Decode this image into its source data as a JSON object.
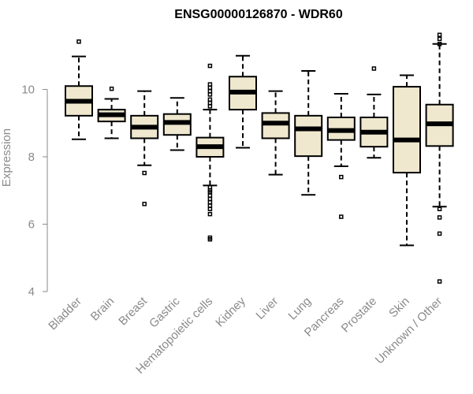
{
  "chart_data": {
    "type": "boxplot",
    "title": "ENSG00000126870 - WDR60",
    "xlabel": "",
    "ylabel": "Expression",
    "ylim": [
      4,
      11.7
    ],
    "yticks": [
      4,
      6,
      8,
      10
    ],
    "box_fill": "#efe8cf",
    "categories": [
      "Bladder",
      "Brain",
      "Breast",
      "Gastric",
      "Hematopoietic cells",
      "Kidney",
      "Liver",
      "Lung",
      "Pancreas",
      "Prostate",
      "Skin",
      "Unknown / Other"
    ],
    "boxes": [
      {
        "category": "Bladder",
        "whisker_low": 8.52,
        "q1": 9.22,
        "median": 9.65,
        "q3": 10.1,
        "whisker_high": 10.98,
        "outliers": [
          11.42
        ]
      },
      {
        "category": "Brain",
        "whisker_low": 8.55,
        "q1": 9.05,
        "median": 9.25,
        "q3": 9.4,
        "whisker_high": 9.72,
        "outliers": [
          10.02
        ]
      },
      {
        "category": "Breast",
        "whisker_low": 7.75,
        "q1": 8.55,
        "median": 8.88,
        "q3": 9.22,
        "whisker_high": 9.95,
        "outliers": [
          7.52,
          6.6
        ]
      },
      {
        "category": "Gastric",
        "whisker_low": 8.2,
        "q1": 8.65,
        "median": 9.02,
        "q3": 9.27,
        "whisker_high": 9.75,
        "outliers": []
      },
      {
        "category": "Hematopoietic cells",
        "whisker_low": 7.15,
        "q1": 8.0,
        "median": 8.3,
        "q3": 8.57,
        "whisker_high": 9.4,
        "outliers": [
          10.7,
          10.15,
          10.05,
          9.95,
          9.85,
          9.7,
          9.6,
          9.5,
          7.1,
          7.0,
          6.95,
          6.85,
          6.75,
          6.65,
          6.55,
          6.45,
          6.3,
          5.6,
          5.55
        ]
      },
      {
        "category": "Kidney",
        "whisker_low": 8.27,
        "q1": 9.4,
        "median": 9.92,
        "q3": 10.38,
        "whisker_high": 11.0,
        "outliers": []
      },
      {
        "category": "Liver",
        "whisker_low": 7.47,
        "q1": 8.55,
        "median": 9.0,
        "q3": 9.3,
        "whisker_high": 9.95,
        "outliers": []
      },
      {
        "category": "Lung",
        "whisker_low": 6.87,
        "q1": 8.02,
        "median": 8.83,
        "q3": 9.22,
        "whisker_high": 10.55,
        "outliers": []
      },
      {
        "category": "Pancreas",
        "whisker_low": 7.72,
        "q1": 8.5,
        "median": 8.78,
        "q3": 9.17,
        "whisker_high": 9.87,
        "outliers": [
          7.4,
          6.22
        ]
      },
      {
        "category": "Prostate",
        "whisker_low": 7.97,
        "q1": 8.3,
        "median": 8.73,
        "q3": 9.17,
        "whisker_high": 9.85,
        "outliers": [
          10.62
        ]
      },
      {
        "category": "Skin",
        "whisker_low": 5.37,
        "q1": 7.53,
        "median": 8.5,
        "q3": 10.08,
        "whisker_high": 10.42,
        "outliers": []
      },
      {
        "category": "Unknown / Other",
        "whisker_low": 6.52,
        "q1": 8.32,
        "median": 8.98,
        "q3": 9.55,
        "whisker_high": 11.35,
        "outliers": [
          11.62,
          11.5,
          11.35,
          6.45,
          6.2,
          5.72,
          4.3
        ]
      }
    ]
  }
}
